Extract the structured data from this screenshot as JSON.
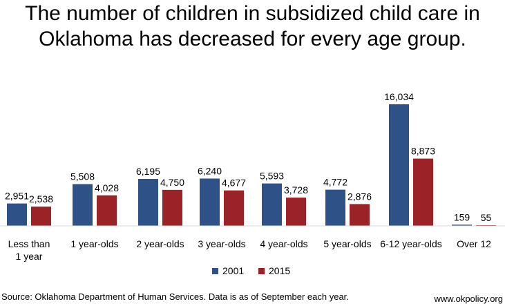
{
  "chart_data": {
    "type": "bar",
    "title_lines": [
      "The number of children in subsidized child care in",
      "Oklahoma has decreased for every age group."
    ],
    "categories": [
      [
        "Less than",
        "1 year"
      ],
      [
        "1 year-olds"
      ],
      [
        "2 year-olds"
      ],
      [
        "3 year-olds"
      ],
      [
        "4 year-olds"
      ],
      [
        "5 year-olds"
      ],
      [
        "6-12 year-olds"
      ],
      [
        "Over 12"
      ]
    ],
    "series": [
      {
        "name": "2001",
        "color": "#2e5288",
        "values": [
          2951,
          5508,
          6195,
          6240,
          5593,
          4772,
          16034,
          159
        ],
        "labels": [
          "2,951",
          "5,508",
          "6,195",
          "6,240",
          "5,593",
          "4,772",
          "16,034",
          "159"
        ]
      },
      {
        "name": "2015",
        "color": "#9b2226",
        "values": [
          2538,
          4028,
          4750,
          4677,
          3728,
          2876,
          8873,
          55
        ],
        "labels": [
          "2,538",
          "4,028",
          "4,750",
          "4,677",
          "3,728",
          "2,876",
          "8,873",
          "55"
        ]
      }
    ],
    "ylim": [
      0,
      16034
    ],
    "legend_position": "bottom-center",
    "grid": false,
    "source": "Source: Oklahoma Department of Human Services. Data is as of September each year.",
    "credit": "www.okpolicy.org"
  }
}
